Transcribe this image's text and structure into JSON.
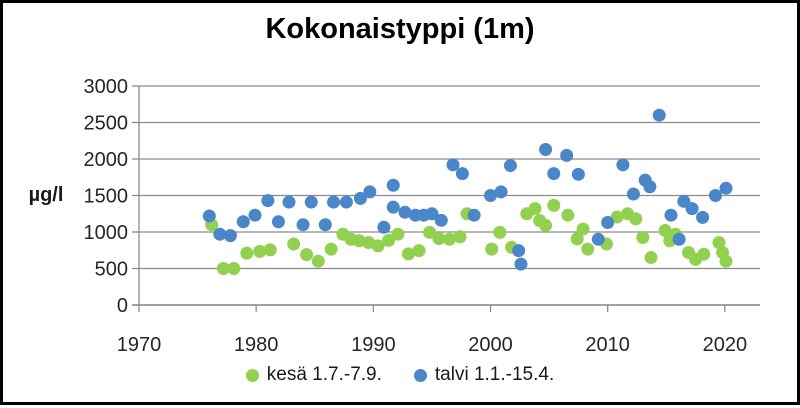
{
  "window": {
    "background": "#ffffff",
    "border_color": "#000000"
  },
  "chart_data": {
    "type": "scatter",
    "title": "Kokonaistyppi (1m)",
    "xlabel": "",
    "ylabel": "µg/l",
    "xlim": [
      1970,
      2023
    ],
    "ylim": [
      0,
      3000
    ],
    "xticks": [
      1970,
      1980,
      1990,
      2000,
      2010,
      2020
    ],
    "yticks": [
      0,
      500,
      1000,
      1500,
      2000,
      2500,
      3000
    ],
    "grid": "horizontal-only",
    "legend_position": "bottom-center",
    "gridline_color": "#8c8c8c",
    "series": [
      {
        "name": "kesä 1.7.-7.9.",
        "color": "#92d050",
        "points": [
          [
            1976.2,
            1100
          ],
          [
            1977.2,
            500
          ],
          [
            1978.1,
            500
          ],
          [
            1979.2,
            710
          ],
          [
            1980.3,
            735
          ],
          [
            1981.2,
            755
          ],
          [
            1983.2,
            835
          ],
          [
            1984.3,
            690
          ],
          [
            1985.3,
            600
          ],
          [
            1986.4,
            765
          ],
          [
            1987.4,
            970
          ],
          [
            1988.1,
            900
          ],
          [
            1988.8,
            880
          ],
          [
            1989.6,
            855
          ],
          [
            1990.4,
            810
          ],
          [
            1991.3,
            885
          ],
          [
            1992.1,
            970
          ],
          [
            1993.0,
            700
          ],
          [
            1993.9,
            745
          ],
          [
            1994.8,
            995
          ],
          [
            1995.6,
            910
          ],
          [
            1996.5,
            900
          ],
          [
            1997.4,
            935
          ],
          [
            1998.0,
            1250
          ],
          [
            2000.1,
            765
          ],
          [
            2000.8,
            995
          ],
          [
            2001.8,
            790
          ],
          [
            2003.1,
            1250
          ],
          [
            2003.8,
            1320
          ],
          [
            2004.2,
            1155
          ],
          [
            2004.7,
            1090
          ],
          [
            2005.4,
            1365
          ],
          [
            2006.6,
            1230
          ],
          [
            2007.4,
            905
          ],
          [
            2007.9,
            1040
          ],
          [
            2008.3,
            765
          ],
          [
            2009.9,
            835
          ],
          [
            2010.8,
            1205
          ],
          [
            2011.7,
            1250
          ],
          [
            2012.4,
            1180
          ],
          [
            2013.0,
            925
          ],
          [
            2013.7,
            650
          ],
          [
            2014.9,
            1020
          ],
          [
            2015.3,
            880
          ],
          [
            2015.8,
            970
          ],
          [
            2016.9,
            720
          ],
          [
            2017.5,
            625
          ],
          [
            2018.2,
            695
          ],
          [
            2019.5,
            855
          ],
          [
            2019.8,
            720
          ],
          [
            2020.1,
            600
          ]
        ]
      },
      {
        "name": "talvi 1.1.-15.4.",
        "color": "#4a86c8",
        "points": [
          [
            1976.0,
            1220
          ],
          [
            1976.9,
            970
          ],
          [
            1977.8,
            950
          ],
          [
            1978.9,
            1140
          ],
          [
            1979.9,
            1230
          ],
          [
            1981.0,
            1430
          ],
          [
            1981.9,
            1140
          ],
          [
            1982.8,
            1410
          ],
          [
            1984.0,
            1100
          ],
          [
            1984.7,
            1410
          ],
          [
            1985.9,
            1100
          ],
          [
            1986.6,
            1410
          ],
          [
            1987.7,
            1410
          ],
          [
            1988.9,
            1460
          ],
          [
            1989.7,
            1550
          ],
          [
            1990.9,
            1065
          ],
          [
            1991.7,
            1340
          ],
          [
            1991.7,
            1640
          ],
          [
            1992.7,
            1270
          ],
          [
            1993.6,
            1230
          ],
          [
            1994.3,
            1230
          ],
          [
            1995.0,
            1250
          ],
          [
            1995.8,
            1160
          ],
          [
            1996.8,
            1920
          ],
          [
            1997.6,
            1800
          ],
          [
            1998.6,
            1230
          ],
          [
            2000.0,
            1500
          ],
          [
            2000.9,
            1550
          ],
          [
            2001.7,
            1910
          ],
          [
            2002.4,
            745
          ],
          [
            2002.6,
            560
          ],
          [
            2004.7,
            2130
          ],
          [
            2005.4,
            1800
          ],
          [
            2006.5,
            2050
          ],
          [
            2007.5,
            1790
          ],
          [
            2009.2,
            900
          ],
          [
            2010.0,
            1130
          ],
          [
            2011.3,
            1920
          ],
          [
            2012.2,
            1520
          ],
          [
            2013.2,
            1710
          ],
          [
            2013.6,
            1620
          ],
          [
            2014.4,
            2600
          ],
          [
            2015.4,
            1230
          ],
          [
            2016.1,
            900
          ],
          [
            2016.5,
            1420
          ],
          [
            2017.2,
            1320
          ],
          [
            2018.1,
            1200
          ],
          [
            2019.2,
            1500
          ],
          [
            2020.1,
            1600
          ]
        ]
      }
    ]
  }
}
